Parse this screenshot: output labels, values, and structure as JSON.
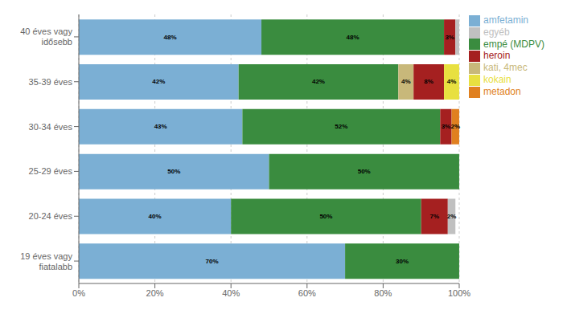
{
  "chart_data": {
    "type": "bar",
    "orientation": "horizontal",
    "stacked": true,
    "data_labels": true,
    "grid": true,
    "legend": "right",
    "categories": [
      "19 éves vagy\nfiatalabb",
      "20-24 éves",
      "25-29 éves",
      "30-34 éves",
      "35-39 éves",
      "40 éves vagy\nidősebb"
    ],
    "xlim": [
      0,
      100
    ],
    "xticks": [
      {
        "value": 0,
        "label": "0%"
      },
      {
        "value": 20,
        "label": "20%"
      },
      {
        "value": 40,
        "label": "40%"
      },
      {
        "value": 60,
        "label": "60%"
      },
      {
        "value": 80,
        "label": "80%"
      },
      {
        "value": 100,
        "label": "100%"
      }
    ],
    "series": [
      {
        "name": "amfetamin",
        "color": "#7BAFD4",
        "values": [
          70,
          40,
          50,
          43,
          42,
          48
        ],
        "value_labels": [
          "70%",
          "40%",
          "50%",
          "43%",
          "42%",
          "48%"
        ]
      },
      {
        "name": "empé (MDPV)",
        "color": "#3A8C3F",
        "values": [
          30,
          50,
          50,
          52,
          42,
          48
        ],
        "value_labels": [
          "30%",
          "50%",
          "50%",
          "52%",
          "42%",
          "48%"
        ]
      },
      {
        "name": "kati, 4mec",
        "color": "#C8B87A",
        "values": [
          0,
          0,
          0,
          0,
          4,
          0
        ],
        "value_labels": [
          null,
          null,
          null,
          null,
          "4%",
          null
        ]
      },
      {
        "name": "heroin",
        "color": "#A52020",
        "values": [
          0,
          7,
          0,
          3,
          8,
          3
        ],
        "value_labels": [
          null,
          "7%",
          null,
          "3%",
          "8%",
          "3%"
        ]
      },
      {
        "name": "kokain",
        "color": "#E8E040",
        "values": [
          0,
          0,
          0,
          0,
          4,
          0
        ],
        "value_labels": [
          null,
          null,
          null,
          null,
          "4%",
          null
        ]
      },
      {
        "name": "metadon",
        "color": "#E08020",
        "values": [
          0,
          0,
          0,
          2,
          0,
          0
        ],
        "value_labels": [
          null,
          null,
          null,
          "2%",
          null,
          null
        ]
      },
      {
        "name": "egyéb",
        "color": "#C0C0C0",
        "values": [
          0,
          2,
          0,
          0,
          0,
          1
        ],
        "value_labels": [
          null,
          "2%",
          null,
          null,
          null,
          null
        ]
      }
    ]
  }
}
